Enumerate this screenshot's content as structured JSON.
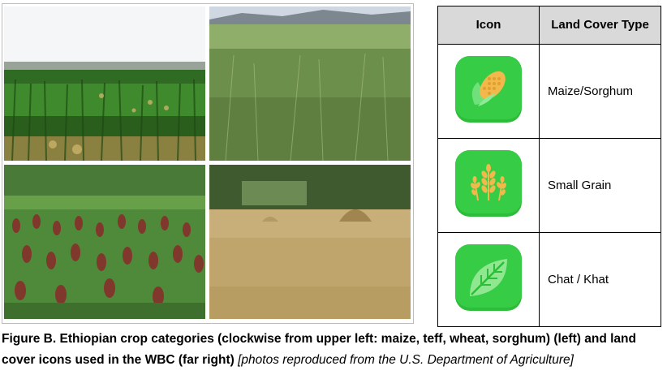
{
  "photos": [
    {
      "crop": "maize"
    },
    {
      "crop": "teff"
    },
    {
      "crop": "sorghum"
    },
    {
      "crop": "wheat"
    }
  ],
  "table": {
    "header_icon": "Icon",
    "header_type": "Land Cover Type",
    "rows": [
      {
        "icon": "corn-icon",
        "label": "Maize/Sorghum"
      },
      {
        "icon": "wheat-icon",
        "label": "Small Grain"
      },
      {
        "icon": "leaf-icon",
        "label": "Chat / Khat"
      }
    ],
    "icon_color": "#33cc44"
  },
  "caption": {
    "bold": "Figure B. Ethiopian crop categories (clockwise from upper left: maize, teff, wheat, sorghum) (left) and land cover icons used in the WBC (far right)",
    "italic": "[photos reproduced from the U.S. Department of Agriculture]"
  }
}
